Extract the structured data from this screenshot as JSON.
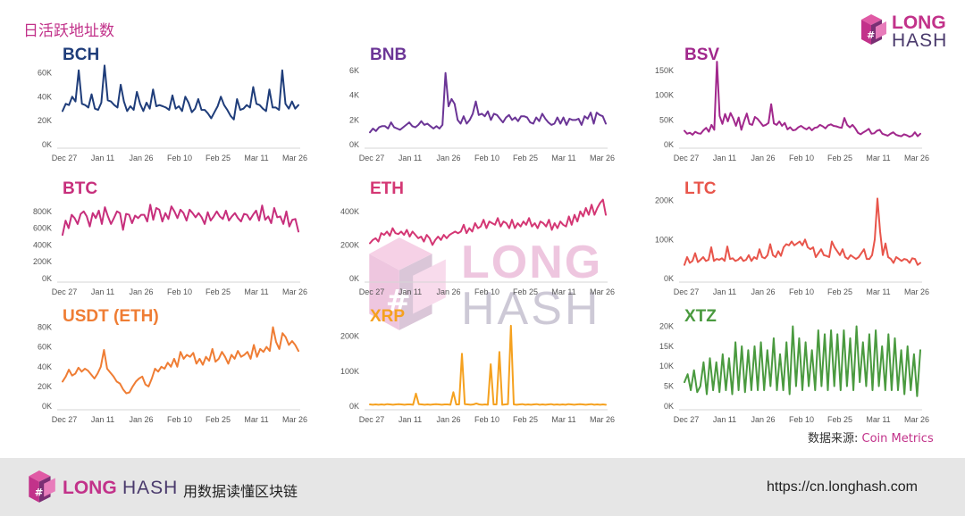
{
  "header": {
    "title": "日活跃地址数"
  },
  "brand": {
    "long": "LONG",
    "hash": "HASH",
    "pink": "#c2328a",
    "purple": "#4a3a6c"
  },
  "footer": {
    "slogan": "用数据读懂区块链",
    "url": "https://cn.longhash.com"
  },
  "source": {
    "label": "数据来源: ",
    "name": "Coin Metrics"
  },
  "chart_data": [
    {
      "type": "line",
      "title": "BCH",
      "color": "#1f3d7a",
      "ylim": [
        0,
        70000
      ],
      "yticks": [
        0,
        20000,
        40000,
        60000
      ],
      "ytick_labels": [
        "0K",
        "20K",
        "40K",
        "60K"
      ],
      "x_labels": [
        "Dec 27",
        "Jan 11",
        "Jan 26",
        "Feb 10",
        "Feb 25",
        "Mar 11",
        "Mar 26"
      ],
      "series": [
        {
          "values": [
            28000,
            34000,
            33000,
            40000,
            36000,
            62000,
            34000,
            33000,
            31000,
            42000,
            30000,
            29000,
            35000,
            66000,
            37000,
            36000,
            33000,
            31000,
            50000,
            36000,
            28000,
            32000,
            29000,
            44000,
            34000,
            28000,
            35000,
            30000,
            46000,
            32000,
            33000,
            32000,
            31000,
            29000,
            41000,
            30000,
            32000,
            28000,
            40000,
            35000,
            27000,
            30000,
            38000,
            29000,
            29000,
            26000,
            22000,
            27000,
            32000,
            40000,
            33000,
            29000,
            24000,
            21000,
            38000,
            29000,
            30000,
            33000,
            31000,
            48000,
            34000,
            33000,
            30000,
            28000,
            46000,
            31000,
            31000,
            29000,
            62000,
            34000,
            30000,
            36000,
            30000,
            33000
          ]
        }
      ]
    },
    {
      "type": "line",
      "title": "BNB",
      "color": "#6b3596",
      "ylim": [
        0,
        6800
      ],
      "yticks": [
        0,
        2000,
        4000,
        6000
      ],
      "ytick_labels": [
        "0K",
        "2K",
        "4K",
        "6K"
      ],
      "x_labels": [
        "Dec 27",
        "Jan 11",
        "Jan 26",
        "Feb 10",
        "Feb 25",
        "Mar 11",
        "Mar 26"
      ],
      "series": [
        {
          "values": [
            1000,
            1300,
            1100,
            1400,
            1500,
            1500,
            1300,
            1800,
            1400,
            1300,
            1200,
            1400,
            1600,
            1800,
            1500,
            1400,
            1600,
            1900,
            1600,
            1700,
            1500,
            1300,
            1500,
            1300,
            1600,
            5800,
            3100,
            3700,
            3300,
            2000,
            1700,
            2300,
            1700,
            2000,
            2500,
            3500,
            2400,
            2500,
            2300,
            2700,
            2000,
            2500,
            2400,
            2100,
            1800,
            2200,
            2400,
            2000,
            2200,
            1900,
            2300,
            2300,
            2200,
            1800,
            1700,
            2200,
            1900,
            2500,
            2100,
            1800,
            1600,
            1700,
            2200,
            1700,
            2200,
            1600,
            2100,
            2000,
            2000,
            2100,
            1600,
            2300,
            2100,
            2600,
            1700,
            2600,
            2400,
            2300,
            1700
          ]
        }
      ]
    },
    {
      "type": "line",
      "title": "BSV",
      "color": "#a1288c",
      "ylim": [
        0,
        170000
      ],
      "yticks": [
        0,
        50000,
        100000,
        150000
      ],
      "ytick_labels": [
        "0K",
        "50K",
        "100K",
        "150K"
      ],
      "x_labels": [
        "Dec 27",
        "Jan 11",
        "Jan 26",
        "Feb 10",
        "Feb 25",
        "Mar 11",
        "Mar 26"
      ],
      "series": [
        {
          "values": [
            28000,
            22000,
            24000,
            20000,
            26000,
            23000,
            22000,
            29000,
            34000,
            26000,
            40000,
            30000,
            168000,
            58000,
            42000,
            62000,
            47000,
            64000,
            53000,
            38000,
            55000,
            30000,
            48000,
            63000,
            42000,
            40000,
            56000,
            52000,
            45000,
            38000,
            40000,
            44000,
            82000,
            43000,
            40000,
            47000,
            38000,
            44000,
            31000,
            35000,
            29000,
            30000,
            35000,
            38000,
            34000,
            31000,
            35000,
            29000,
            34000,
            35000,
            40000,
            37000,
            33000,
            39000,
            41000,
            38000,
            37000,
            35000,
            34000,
            54000,
            40000,
            35000,
            40000,
            33000,
            24000,
            21000,
            25000,
            28000,
            32000,
            22000,
            23000,
            28000,
            30000,
            22000,
            20000,
            18000,
            22000,
            25000,
            20000,
            18000,
            17000,
            21000,
            19000,
            16000,
            18000,
            25000,
            17000,
            22000
          ]
        }
      ]
    },
    {
      "type": "line",
      "title": "BTC",
      "color": "#c72f7c",
      "ylim": [
        0,
        1000000
      ],
      "yticks": [
        0,
        200000,
        400000,
        600000,
        800000
      ],
      "ytick_labels": [
        "0K",
        "200K",
        "400K",
        "600K",
        "800K"
      ],
      "x_labels": [
        "Dec 27",
        "Jan 11",
        "Jan 26",
        "Feb 10",
        "Feb 25",
        "Mar 11",
        "Mar 26"
      ],
      "series": [
        {
          "values": [
            520000,
            690000,
            600000,
            760000,
            720000,
            650000,
            770000,
            800000,
            740000,
            620000,
            780000,
            720000,
            810000,
            650000,
            850000,
            740000,
            650000,
            720000,
            800000,
            780000,
            580000,
            770000,
            760000,
            660000,
            750000,
            720000,
            760000,
            760000,
            680000,
            880000,
            700000,
            840000,
            820000,
            680000,
            780000,
            710000,
            860000,
            800000,
            720000,
            820000,
            780000,
            690000,
            820000,
            780000,
            730000,
            780000,
            730000,
            650000,
            790000,
            690000,
            740000,
            800000,
            740000,
            710000,
            810000,
            690000,
            740000,
            780000,
            720000,
            680000,
            770000,
            760000,
            700000,
            760000,
            810000,
            690000,
            870000,
            700000,
            740000,
            660000,
            840000,
            730000,
            740000,
            650000,
            800000,
            620000,
            700000,
            710000,
            560000
          ]
        }
      ]
    },
    {
      "type": "line",
      "title": "ETH",
      "color": "#d43774",
      "ylim": [
        0,
        500000
      ],
      "yticks": [
        0,
        200000,
        400000
      ],
      "ytick_labels": [
        "0K",
        "200K",
        "400K"
      ],
      "x_labels": [
        "Dec 27",
        "Jan 11",
        "Jan 26",
        "Feb 10",
        "Feb 25",
        "Mar 11",
        "Mar 26"
      ],
      "series": [
        {
          "values": [
            210000,
            230000,
            240000,
            220000,
            270000,
            260000,
            280000,
            255000,
            300000,
            270000,
            265000,
            280000,
            260000,
            290000,
            250000,
            280000,
            260000,
            240000,
            250000,
            220000,
            260000,
            240000,
            200000,
            230000,
            250000,
            230000,
            260000,
            240000,
            260000,
            270000,
            280000,
            270000,
            280000,
            320000,
            270000,
            300000,
            280000,
            330000,
            300000,
            310000,
            350000,
            300000,
            340000,
            330000,
            320000,
            360000,
            310000,
            340000,
            330000,
            300000,
            350000,
            300000,
            330000,
            310000,
            340000,
            320000,
            360000,
            310000,
            330000,
            300000,
            340000,
            330000,
            310000,
            350000,
            290000,
            330000,
            300000,
            340000,
            320000,
            310000,
            370000,
            320000,
            380000,
            340000,
            400000,
            370000,
            420000,
            380000,
            440000,
            380000,
            420000,
            450000,
            470000,
            380000
          ]
        }
      ]
    },
    {
      "type": "line",
      "title": "LTC",
      "color": "#e8554b",
      "ylim": [
        0,
        215000
      ],
      "yticks": [
        0,
        100000,
        200000
      ],
      "ytick_labels": [
        "0K",
        "100K",
        "200K"
      ],
      "x_labels": [
        "Dec 27",
        "Jan 11",
        "Jan 26",
        "Feb 10",
        "Feb 25",
        "Mar 11",
        "Mar 26"
      ],
      "series": [
        {
          "values": [
            35000,
            55000,
            40000,
            45000,
            65000,
            42000,
            48000,
            55000,
            45000,
            48000,
            80000,
            45000,
            50000,
            48000,
            52000,
            45000,
            82000,
            50000,
            52000,
            45000,
            48000,
            55000,
            45000,
            48000,
            60000,
            45000,
            55000,
            50000,
            75000,
            55000,
            52000,
            60000,
            88000,
            60000,
            55000,
            70000,
            58000,
            80000,
            88000,
            85000,
            95000,
            85000,
            90000,
            95000,
            85000,
            100000,
            80000,
            75000,
            80000,
            55000,
            65000,
            75000,
            60000,
            58000,
            55000,
            95000,
            80000,
            70000,
            60000,
            75000,
            55000,
            50000,
            60000,
            55000,
            50000,
            55000,
            65000,
            75000,
            50000,
            50000,
            60000,
            100000,
            205000,
            120000,
            60000,
            90000,
            55000,
            50000,
            40000,
            55000,
            50000,
            45000,
            50000,
            48000,
            40000,
            52000,
            50000,
            35000,
            40000
          ]
        }
      ]
    },
    {
      "type": "line",
      "title": "USDT (ETH)",
      "color": "#ef7d34",
      "ylim": [
        0,
        85000
      ],
      "yticks": [
        0,
        20000,
        40000,
        60000,
        80000
      ],
      "ytick_labels": [
        "0K",
        "20K",
        "40K",
        "60K",
        "80K"
      ],
      "x_labels": [
        "Dec 27",
        "Jan 11",
        "Jan 26",
        "Feb 10",
        "Feb 25",
        "Mar 11",
        "Mar 26"
      ],
      "series": [
        {
          "values": [
            25000,
            30000,
            37000,
            31000,
            33000,
            39000,
            35000,
            38000,
            36000,
            32000,
            28000,
            33000,
            40000,
            57000,
            38000,
            34000,
            30000,
            25000,
            23000,
            17000,
            13000,
            14000,
            20000,
            25000,
            28000,
            30000,
            22000,
            20000,
            28000,
            38000,
            35000,
            40000,
            38000,
            44000,
            40000,
            48000,
            40000,
            55000,
            48000,
            52000,
            50000,
            54000,
            43000,
            48000,
            42000,
            50000,
            46000,
            58000,
            45000,
            48000,
            55000,
            50000,
            43000,
            52000,
            48000,
            56000,
            50000,
            52000,
            55000,
            48000,
            62000,
            50000,
            58000,
            55000,
            60000,
            56000,
            80000,
            65000,
            58000,
            74000,
            70000,
            62000,
            66000,
            62000,
            56000
          ]
        }
      ]
    },
    {
      "type": "line",
      "title": "XRP",
      "color": "#f5a11f",
      "ylim": [
        0,
        240000
      ],
      "yticks": [
        0,
        100000,
        200000
      ],
      "ytick_labels": [
        "0K",
        "100K",
        "200K"
      ],
      "x_labels": [
        "Dec 27",
        "Jan 11",
        "Jan 26",
        "Feb 10",
        "Feb 25",
        "Mar 11",
        "Mar 26"
      ],
      "series": [
        {
          "values": [
            5000,
            4000,
            5000,
            4000,
            5000,
            4000,
            6000,
            5000,
            4000,
            5000,
            6000,
            5000,
            4000,
            5000,
            5000,
            4000,
            36000,
            6000,
            5000,
            4000,
            5000,
            4000,
            5000,
            6000,
            5000,
            4000,
            5000,
            5000,
            4000,
            40000,
            5000,
            5000,
            150000,
            6000,
            5000,
            4000,
            5000,
            8000,
            5000,
            4000,
            5000,
            4000,
            120000,
            5000,
            5000,
            155000,
            4000,
            5000,
            6000,
            230000,
            5000,
            4000,
            5000,
            6000,
            4000,
            5000,
            4000,
            5000,
            6000,
            4000,
            5000,
            4000,
            5000,
            6000,
            4000,
            5000,
            4000,
            5000,
            4000,
            6000,
            5000,
            4000,
            5000,
            6000,
            5000,
            4000,
            5000,
            6000,
            4000,
            5000,
            4000,
            5000,
            4000
          ]
        }
      ]
    },
    {
      "type": "line",
      "title": "XTZ",
      "color": "#4a9a3f",
      "ylim": [
        0,
        21000
      ],
      "yticks": [
        0,
        5000,
        10000,
        15000,
        20000
      ],
      "ytick_labels": [
        "0K",
        "5K",
        "10K",
        "15K",
        "20K"
      ],
      "x_labels": [
        "Dec 27",
        "Jan 11",
        "Jan 26",
        "Feb 10",
        "Feb 25",
        "Mar 11",
        "Mar 26"
      ],
      "series": [
        {
          "values": [
            6000,
            8000,
            4000,
            9000,
            3500,
            5000,
            11000,
            3000,
            12000,
            4000,
            11000,
            3500,
            13000,
            4000,
            12000,
            3000,
            16000,
            4000,
            15000,
            3500,
            14000,
            4000,
            15000,
            4000,
            16000,
            4000,
            14000,
            5000,
            17000,
            4000,
            13000,
            4000,
            16000,
            3000,
            20000,
            5000,
            17000,
            4000,
            16000,
            5000,
            14000,
            4000,
            19000,
            5000,
            18000,
            4000,
            19000,
            5000,
            18000,
            4000,
            19000,
            5000,
            17000,
            4000,
            20000,
            6000,
            16000,
            5000,
            18000,
            4000,
            19000,
            5000,
            15000,
            4000,
            18000,
            4000,
            17000,
            4000,
            14000,
            3000,
            15000,
            4000,
            13000,
            2500,
            14000
          ]
        }
      ]
    }
  ]
}
